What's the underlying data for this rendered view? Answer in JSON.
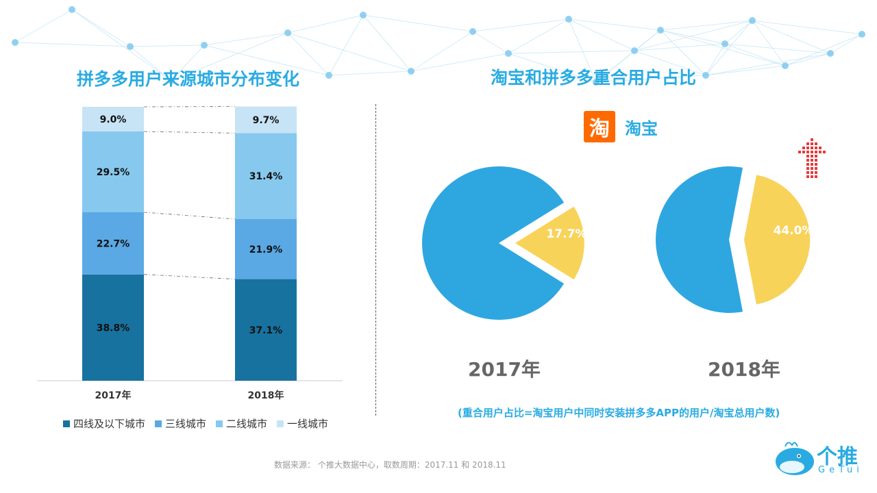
{
  "header": {
    "left_title": "拼多多用户来源城市分布变化",
    "right_title": "淘宝和拼多多重合用户占比"
  },
  "colors": {
    "tier4": "#17729f",
    "tier3": "#5aa9e4",
    "tier2": "#86c8ee",
    "tier1": "#c7e3f6",
    "pie_main": "#2ea7e0",
    "pie_overlap": "#f8d35a",
    "accent": "#29abe2"
  },
  "chart_data": [
    {
      "type": "bar",
      "stacked": true,
      "normalized_percent": true,
      "title": "拼多多用户来源城市分布变化",
      "categories": [
        "2017年",
        "2018年"
      ],
      "series": [
        {
          "name": "四线及以下城市",
          "values": [
            38.8,
            37.1
          ],
          "labels": [
            "38.8%",
            "37.1%"
          ]
        },
        {
          "name": "三线城市",
          "values": [
            22.7,
            21.9
          ],
          "labels": [
            "22.7%",
            "21.9%"
          ]
        },
        {
          "name": "二线城市",
          "values": [
            29.5,
            31.4
          ],
          "labels": [
            "29.5%",
            "31.4%"
          ]
        },
        {
          "name": "一线城市",
          "values": [
            9.0,
            9.7
          ],
          "labels": [
            "9.0%",
            "9.7%"
          ]
        }
      ],
      "ylim": [
        0,
        100
      ],
      "legend": "bottom"
    },
    {
      "type": "pie",
      "title": "淘宝和拼多多重合用户占比",
      "subtitle": "淘宝",
      "charts": [
        {
          "year": "2017年",
          "overlap": 17.7,
          "overlap_label": "17.7%"
        },
        {
          "year": "2018年",
          "overlap": 44.0,
          "overlap_label": "44.0%"
        }
      ]
    }
  ],
  "legend": {
    "items": [
      "四线及以下城市",
      "三线城市",
      "二线城市",
      "一线城市"
    ]
  },
  "right_panel": {
    "logo_glyph": "淘",
    "brand_name": "淘宝",
    "year_2017": "2017年",
    "year_2018": "2018年",
    "formula": "(重合用户占比=淘宝用户中同时安装拼多多APP的用户/淘宝总用户数)"
  },
  "footer": {
    "source": "数据来源： 个推大数据中心，取数周期：2017.11 和 2018.11",
    "brand_name": "个推",
    "brand_sub": "GeTui"
  }
}
